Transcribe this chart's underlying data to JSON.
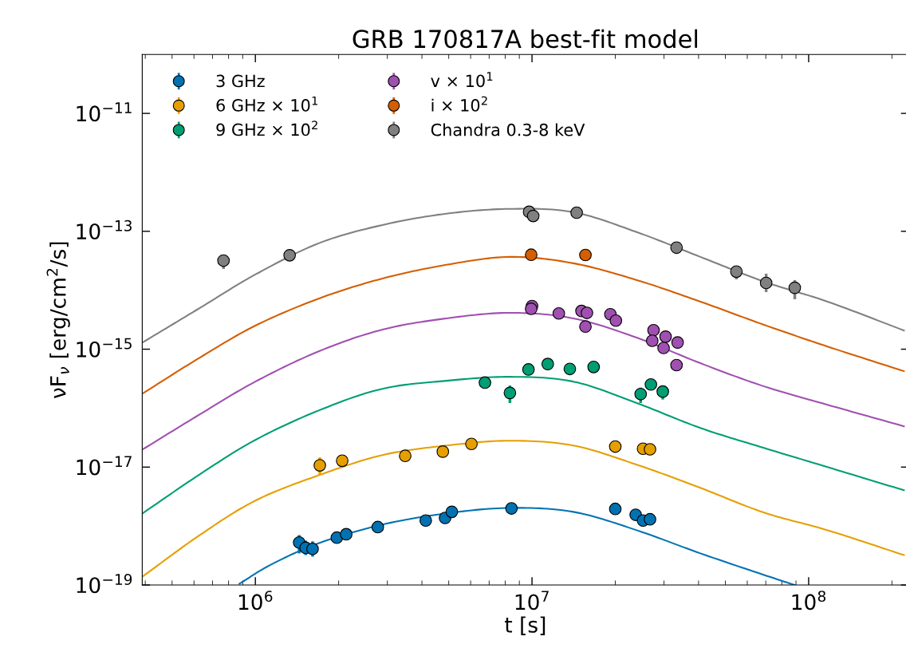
{
  "chart_data": {
    "type": "scatter",
    "title": "GRB 170817A best-fit model",
    "xlabel": "t [s]",
    "ylabel": "νF$_{ν}$ [erg/cm$^{2}$/s]",
    "log": "xy",
    "xlim": [
      390000.0,
      230000000.0
    ],
    "ylim": [
      1e-19,
      1e-10
    ],
    "xticks": [
      {
        "value": 1000000.0,
        "label": "10$^{6}$"
      },
      {
        "value": 10000000.0,
        "label": "10$^{7}$"
      },
      {
        "value": 100000000.0,
        "label": "10$^{8}$"
      }
    ],
    "yticks": [
      {
        "value": 1e-19,
        "label": "10$^{−19}$"
      },
      {
        "value": 1e-17,
        "label": "10$^{−17}$"
      },
      {
        "value": 1e-15,
        "label": "10$^{−15}$"
      },
      {
        "value": 1e-13,
        "label": "10$^{−13}$"
      },
      {
        "value": 1e-11,
        "label": "10$^{−11}$"
      }
    ],
    "grid": false,
    "legend": "top left",
    "marker": "circle",
    "series": [
      {
        "type": "line",
        "marker": "none",
        "color": "#0072b2",
        "x": [
          876000.0,
          1140000.0,
          1700000.0,
          2880000.0,
          4900000.0,
          8320000.0,
          14100000.0,
          23900000.0,
          40600000.0,
          69000000.0,
          89000000.0
        ],
        "values": [
          1.05e-19,
          2.22e-19,
          5.15e-19,
          1.06e-18,
          1.64e-18,
          2.03e-18,
          1.74e-18,
          8.49e-19,
          3.44e-19,
          1.48e-19,
          1e-19
        ]
      },
      {
        "type": "line",
        "marker": "none",
        "color": "#e69f00",
        "x": [
          391000.0,
          630000.0,
          1000000.0,
          1700000.0,
          2880000.0,
          4900000.0,
          8320000.0,
          14100000.0,
          23900000.0,
          40600000.0,
          69000000.0,
          117000000.0,
          221000000.0
        ],
        "values": [
          1.39e-19,
          7.03e-19,
          2.7e-18,
          7.31e-18,
          1.6e-17,
          2.32e-17,
          2.8e-17,
          2.32e-17,
          1.1e-17,
          4.44e-18,
          1.69e-18,
          8.49e-19,
          3.22e-19
        ]
      },
      {
        "type": "line",
        "marker": "none",
        "color": "#009e73",
        "x": [
          391000.0,
          630000.0,
          1000000.0,
          1700000.0,
          2880000.0,
          4900000.0,
          8320000.0,
          14100000.0,
          23900000.0,
          40600000.0,
          69000000.0,
          117000000.0,
          221000000.0
        ],
        "values": [
          1.64e-18,
          7.55e-18,
          2.89e-17,
          9.18e-17,
          2.13e-16,
          2.91e-16,
          3.4e-16,
          2.82e-16,
          1.22e-16,
          4.61e-17,
          2.11e-17,
          1e-17,
          4.05e-18
        ]
      },
      {
        "type": "line",
        "marker": "none",
        "color": "#a050b0",
        "x": [
          391000.0,
          630000.0,
          1000000.0,
          1700000.0,
          2880000.0,
          4900000.0,
          8320000.0,
          14100000.0,
          23900000.0,
          40600000.0,
          69000000.0,
          117000000.0,
          221000000.0
        ],
        "values": [
          1.99e-17,
          7.85e-17,
          2.82e-16,
          9.25e-16,
          2.15e-15,
          3.33e-15,
          4.14e-15,
          3.33e-15,
          1.57e-15,
          5.79e-16,
          2.34e-16,
          1.14e-16,
          4.92e-17
        ]
      },
      {
        "type": "line",
        "marker": "none",
        "color": "#d55e00",
        "x": [
          391000.0,
          630000.0,
          1000000.0,
          1700000.0,
          2880000.0,
          4900000.0,
          8320000.0,
          14100000.0,
          23900000.0,
          40600000.0,
          69000000.0,
          117000000.0,
          221000000.0
        ],
        "values": [
          1.77e-16,
          7.2e-16,
          2.51e-15,
          7.26e-15,
          1.58e-14,
          2.7e-14,
          3.68e-14,
          2.87e-14,
          1.49e-14,
          6.41e-15,
          2.59e-15,
          1.11e-15,
          4.24e-16
        ]
      },
      {
        "type": "line",
        "marker": "none",
        "color": "#808080",
        "x": [
          391000.0,
          630000.0,
          1000000.0,
          1700000.0,
          2880000.0,
          4900000.0,
          8320000.0,
          14100000.0,
          23900000.0,
          40600000.0,
          69000000.0,
          117000000.0,
          221000000.0
        ],
        "values": [
          1.3e-15,
          5e-15,
          1.85e-14,
          6.3e-14,
          1.28e-13,
          1.99e-13,
          2.4e-13,
          2.11e-13,
          9.7e-14,
          3.68e-14,
          1.4e-14,
          6.41e-15,
          2.08e-15
        ]
      },
      {
        "name": "3 GHz",
        "color": "#0072b2",
        "x": [
          1440000.0,
          1520000.0,
          1610000.0,
          1970000.0,
          2130000.0,
          2770000.0,
          4130000.0,
          4850000.0,
          5130000.0,
          8430000.0,
          20000000.0,
          23700000.0,
          25200000.0,
          26700000.0
        ],
        "values": [
          5.26e-19,
          4.27e-19,
          4.1e-19,
          6.35e-19,
          7.26e-19,
          9.6e-19,
          1.24e-18,
          1.37e-18,
          1.74e-18,
          1.99e-18,
          1.95e-18,
          1.55e-18,
          1.24e-18,
          1.3e-18
        ],
        "errors": [
          [
            3.44e-19,
            7.03e-19
          ],
          [
            3.22e-19,
            5.66e-19
          ],
          [
            3.03e-19,
            5.5e-19
          ],
          null,
          null,
          null,
          null,
          null,
          null,
          null,
          null,
          null,
          null,
          null
        ]
      },
      {
        "name": "6 GHz × 10$^{1}$",
        "color": "#e69f00",
        "x": [
          1710000.0,
          2060000.0,
          3480000.0,
          4760000.0,
          6040000.0,
          20000000.0,
          25200000.0,
          26700000.0
        ],
        "values": [
          1.07e-17,
          1.28e-17,
          1.55e-17,
          1.83e-17,
          2.47e-17,
          2.23e-17,
          2.05e-17,
          2e-17
        ],
        "errors": [
          [
            7.55e-18,
            1.46e-17
          ],
          null,
          null,
          null,
          null,
          null,
          null,
          null
        ]
      },
      {
        "name": "9 GHz × 10$^{2}$",
        "color": "#009e73",
        "x": [
          6760000.0,
          8320000.0,
          9710000.0,
          11400000.0,
          13700000.0,
          16700000.0,
          24700000.0,
          26900000.0,
          29700000.0
        ],
        "values": [
          2.71e-16,
          1.81e-16,
          4.53e-16,
          5.6e-16,
          4.62e-16,
          4.99e-16,
          1.73e-16,
          2.52e-16,
          1.91e-16
        ],
        "errors": [
          null,
          [
            1.22e-16,
            2.42e-16
          ],
          null,
          null,
          null,
          null,
          [
            1.22e-16,
            2.23e-16
          ],
          null,
          [
            1.4e-16,
            2.39e-16
          ]
        ]
      },
      {
        "name": "v × 10$^{1}$",
        "color": "#a050b0",
        "x": [
          10000000.0,
          9930000.0,
          12500000.0,
          15100000.0,
          15800000.0,
          19200000.0,
          20100000.0,
          15600000.0,
          27500000.0,
          30400000.0,
          27200000.0,
          33600000.0,
          29900000.0,
          33300000.0
        ],
        "values": [
          5.38e-15,
          4.84e-15,
          4.04e-15,
          4.45e-15,
          4.13e-15,
          3.92e-15,
          3.05e-15,
          2.42e-15,
          2.1e-15,
          1.63e-15,
          1.39e-15,
          1.3e-15,
          1.05e-15,
          5.37e-16
        ]
      },
      {
        "name": "i × 10$^{2}$",
        "color": "#d55e00",
        "x": [
          9930000.0,
          15600000.0
        ],
        "values": [
          4e-14,
          3.96e-14
        ]
      },
      {
        "name": "Chandra 0.3-8 keV",
        "color": "#808080",
        "x": [
          767000.0,
          1330000.0,
          9760000.0,
          10100000.0,
          14500000.0,
          33300000.0,
          54800000.0,
          70200000.0,
          89100000.0
        ],
        "values": [
          3.18e-14,
          3.92e-14,
          2.14e-13,
          1.82e-13,
          2.07e-13,
          5.28e-14,
          2.07e-14,
          1.33e-14,
          1.1e-14
        ],
        "errors": [
          [
            2.3e-14,
            3.9e-14
          ],
          null,
          null,
          null,
          null,
          null,
          [
            1.53e-14,
            2.53e-14
          ],
          [
            9.3e-15,
            1.91e-14
          ],
          [
            7.04e-15,
            1.49e-14
          ]
        ]
      }
    ]
  }
}
